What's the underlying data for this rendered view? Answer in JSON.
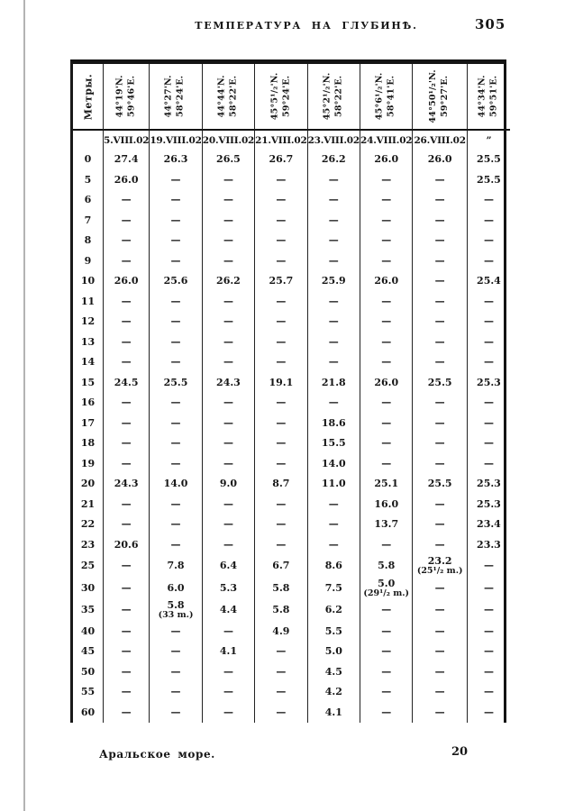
{
  "page": {
    "title": "ТЕМПЕРАТУРА НА ГЛУБИНѢ.",
    "page_number": "305",
    "footer_caption": "Аральское море.",
    "footer_sheet_number": "20"
  },
  "table": {
    "depth_column_header": "Метры.",
    "dash": "—",
    "stations": [
      {
        "lat": "44°19'N.",
        "lon": "59°46'E.",
        "date": "5.VIII.02"
      },
      {
        "lat": "44°27'N.",
        "lon": "58°24'E.",
        "date": "19.VIII.02"
      },
      {
        "lat": "44°44'N.",
        "lon": "58°22'E.",
        "date": "20.VIII.02"
      },
      {
        "lat": "45°5¹/₂'N.",
        "lon": "59°24'E.",
        "date": "21.VIII.02"
      },
      {
        "lat": "45°2¹/₂'N.",
        "lon": "58°22'E.",
        "date": "23.VIII.02"
      },
      {
        "lat": "45°6¹/₂'N.",
        "lon": "58°41'E.",
        "date": "24.VIII.02"
      },
      {
        "lat": "44°50¹/₂'N.",
        "lon": "59°27'E.",
        "date": "26.VIII.02"
      },
      {
        "lat": "44°34'N.",
        "lon": "59°51'E.",
        "date": "”"
      }
    ],
    "rows": [
      {
        "depth": "0",
        "values": [
          "27.4",
          "26.3",
          "26.5",
          "26.7",
          "26.2",
          "26.0",
          "26.0",
          "25.5"
        ]
      },
      {
        "depth": "5",
        "values": [
          "26.0",
          "—",
          "—",
          "—",
          "—",
          "—",
          "—",
          "25.5"
        ]
      },
      {
        "depth": "6",
        "values": [
          "—",
          "—",
          "—",
          "—",
          "—",
          "—",
          "—",
          "—"
        ]
      },
      {
        "depth": "7",
        "values": [
          "—",
          "—",
          "—",
          "—",
          "—",
          "—",
          "—",
          "—"
        ]
      },
      {
        "depth": "8",
        "values": [
          "—",
          "—",
          "—",
          "—",
          "—",
          "—",
          "—",
          "—"
        ]
      },
      {
        "depth": "9",
        "values": [
          "—",
          "—",
          "—",
          "—",
          "—",
          "—",
          "—",
          "—"
        ]
      },
      {
        "depth": "10",
        "values": [
          "26.0",
          "25.6",
          "26.2",
          "25.7",
          "25.9",
          "26.0",
          "—",
          "25.4"
        ]
      },
      {
        "depth": "11",
        "values": [
          "—",
          "—",
          "—",
          "—",
          "—",
          "—",
          "—",
          "—"
        ]
      },
      {
        "depth": "12",
        "values": [
          "—",
          "—",
          "—",
          "—",
          "—",
          "—",
          "—",
          "—"
        ]
      },
      {
        "depth": "13",
        "values": [
          "—",
          "—",
          "—",
          "—",
          "—",
          "—",
          "—",
          "—"
        ]
      },
      {
        "depth": "14",
        "values": [
          "—",
          "—",
          "—",
          "—",
          "—",
          "—",
          "—",
          "—"
        ]
      },
      {
        "depth": "15",
        "values": [
          "24.5",
          "25.5",
          "24.3",
          "19.1",
          "21.8",
          "26.0",
          "25.5",
          "25.3"
        ]
      },
      {
        "depth": "16",
        "values": [
          "—",
          "—",
          "—",
          "—",
          "—",
          "—",
          "—",
          "—"
        ]
      },
      {
        "depth": "17",
        "values": [
          "—",
          "—",
          "—",
          "—",
          "18.6",
          "—",
          "—",
          "—"
        ]
      },
      {
        "depth": "18",
        "values": [
          "—",
          "—",
          "—",
          "—",
          "15.5",
          "—",
          "—",
          "—"
        ]
      },
      {
        "depth": "19",
        "values": [
          "—",
          "—",
          "—",
          "—",
          "14.0",
          "—",
          "—",
          "—"
        ]
      },
      {
        "depth": "20",
        "values": [
          "24.3",
          "14.0",
          "9.0",
          "8.7",
          "11.0",
          "25.1",
          "25.5",
          "25.3"
        ]
      },
      {
        "depth": "21",
        "values": [
          "—",
          "—",
          "—",
          "—",
          "—",
          "16.0",
          "—",
          "25.3"
        ]
      },
      {
        "depth": "22",
        "values": [
          "—",
          "—",
          "—",
          "—",
          "—",
          "13.7",
          "—",
          "23.4"
        ]
      },
      {
        "depth": "23",
        "values": [
          "20.6",
          "—",
          "—",
          "—",
          "—",
          "—",
          "—",
          "23.3"
        ]
      },
      {
        "depth": "25",
        "values": [
          "—",
          "7.8",
          "6.4",
          "6.7",
          "8.6",
          "5.8",
          "23.2\n(25¹/₂ m.)",
          "—"
        ]
      },
      {
        "depth": "30",
        "values": [
          "—",
          "6.0",
          "5.3",
          "5.8",
          "7.5",
          "5.0\n(29¹/₂ m.)",
          "—",
          "—"
        ]
      },
      {
        "depth": "35",
        "values": [
          "—",
          "5.8\n(33 m.)",
          "4.4",
          "5.8",
          "6.2",
          "—",
          "—",
          "—"
        ]
      },
      {
        "depth": "40",
        "values": [
          "—",
          "—",
          "—",
          "4.9",
          "5.5",
          "—",
          "—",
          "—"
        ]
      },
      {
        "depth": "45",
        "values": [
          "—",
          "—",
          "4.1",
          "—",
          "5.0",
          "—",
          "—",
          "—"
        ]
      },
      {
        "depth": "50",
        "values": [
          "—",
          "—",
          "—",
          "—",
          "4.5",
          "—",
          "—",
          "—"
        ]
      },
      {
        "depth": "55",
        "values": [
          "—",
          "—",
          "—",
          "—",
          "4.2",
          "—",
          "—",
          "—"
        ]
      },
      {
        "depth": "60",
        "values": [
          "—",
          "—",
          "—",
          "—",
          "4.1",
          "—",
          "—",
          "—"
        ]
      }
    ]
  }
}
